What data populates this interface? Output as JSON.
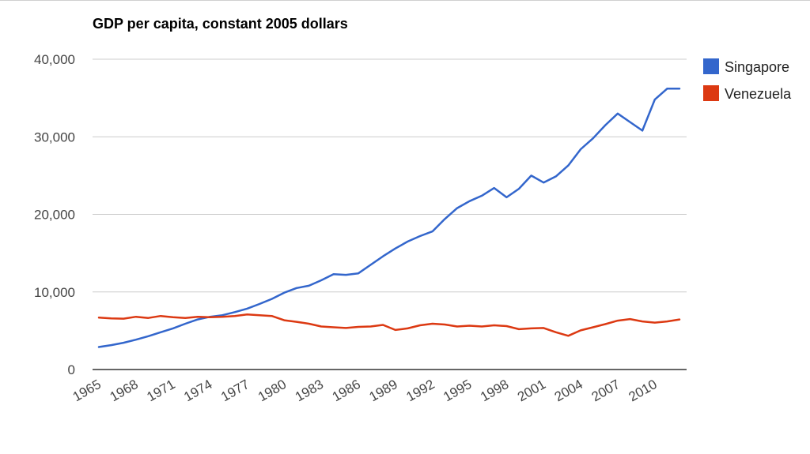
{
  "chart_data": {
    "type": "line",
    "title": "GDP per capita, constant 2005 dollars",
    "xlabel": "",
    "ylabel": "",
    "ylim": [
      0,
      40000
    ],
    "y_ticks": [
      0,
      10000,
      20000,
      30000,
      40000
    ],
    "y_tick_labels": [
      "0",
      "10,000",
      "20,000",
      "30,000",
      "40,000"
    ],
    "x_ticks": [
      1965,
      1968,
      1971,
      1974,
      1977,
      1980,
      1983,
      1986,
      1989,
      1992,
      1995,
      1998,
      2001,
      2004,
      2007,
      2010
    ],
    "x_tick_labels": [
      "1965",
      "1968",
      "1971",
      "1974",
      "1977",
      "1980",
      "1983",
      "1986",
      "1989",
      "1992",
      "1995",
      "1998",
      "2001",
      "2004",
      "2007",
      "2010"
    ],
    "x": [
      1965,
      1966,
      1967,
      1968,
      1969,
      1970,
      1971,
      1972,
      1973,
      1974,
      1975,
      1976,
      1977,
      1978,
      1979,
      1980,
      1981,
      1982,
      1983,
      1984,
      1985,
      1986,
      1987,
      1988,
      1989,
      1990,
      1991,
      1992,
      1993,
      1994,
      1995,
      1996,
      1997,
      1998,
      1999,
      2000,
      2001,
      2002,
      2003,
      2004,
      2005,
      2006,
      2007,
      2008,
      2009,
      2010,
      2011,
      2012
    ],
    "legend_position": "right",
    "series": [
      {
        "name": "Singapore",
        "color": "#3366cc",
        "values": [
          2900,
          3150,
          3450,
          3850,
          4300,
          4800,
          5300,
          5900,
          6450,
          6800,
          7000,
          7400,
          7850,
          8450,
          9100,
          9900,
          10500,
          10800,
          11500,
          12300,
          12200,
          12400,
          13500,
          14600,
          15600,
          16500,
          17200,
          17800,
          19400,
          20800,
          21700,
          22400,
          23400,
          22200,
          23300,
          25000,
          24100,
          24900,
          26300,
          28400,
          29800,
          31500,
          33000,
          31900,
          30800,
          34800,
          36200,
          36200
        ]
      },
      {
        "name": "Venezuela",
        "color": "#dc3912",
        "values": [
          6700,
          6600,
          6550,
          6800,
          6650,
          6900,
          6750,
          6650,
          6800,
          6750,
          6800,
          6900,
          7100,
          7000,
          6900,
          6350,
          6150,
          5900,
          5550,
          5450,
          5350,
          5500,
          5550,
          5750,
          5100,
          5300,
          5700,
          5900,
          5800,
          5550,
          5650,
          5550,
          5700,
          5600,
          5200,
          5300,
          5350,
          4800,
          4350,
          5050,
          5450,
          5850,
          6300,
          6500,
          6200,
          6050,
          6200,
          6450
        ]
      }
    ]
  }
}
